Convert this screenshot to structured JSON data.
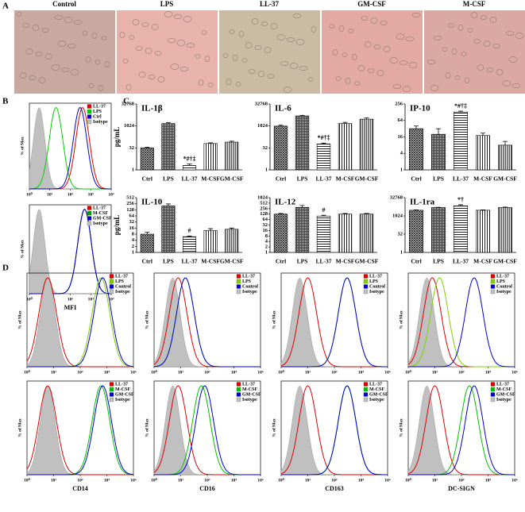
{
  "panel_labels": [
    "A",
    "B",
    "C",
    "D"
  ],
  "micrographs": [
    "Control",
    "LPS",
    "LL-37",
    "GM-CSF",
    "M-CSF"
  ],
  "chart_data": [
    {
      "type": "bar",
      "title": "IL-1β",
      "ylabel": "pg/mL",
      "categories": [
        "Ctrl",
        "LPS",
        "LL-37",
        "M-CSF",
        "GM-CSF"
      ],
      "values": [
        32,
        1500,
        2,
        64,
        80
      ],
      "errors": [
        4,
        200,
        0.5,
        8,
        12
      ],
      "annotations": [
        null,
        null,
        "*#†‡",
        null,
        null
      ],
      "ylim": [
        1,
        32768
      ],
      "yticks": [
        1,
        32,
        1024,
        32768
      ],
      "log_base": 2
    },
    {
      "type": "bar",
      "title": "IL-6",
      "categories": [
        "Ctrl",
        "LPS",
        "LL-37",
        "M-CSF",
        "GM-CSF"
      ],
      "values": [
        1000,
        5000,
        60,
        1500,
        3000
      ],
      "errors": [
        150,
        500,
        8,
        300,
        600
      ],
      "annotations": [
        null,
        null,
        "*#†‡",
        null,
        null
      ],
      "ylim": [
        1,
        32768
      ],
      "yticks": [
        1,
        32,
        1024,
        32768
      ],
      "log_base": 2
    },
    {
      "type": "bar",
      "title": "IP-10",
      "categories": [
        "Ctrl",
        "LPS",
        "LL-37",
        "M-CSF",
        "GM-CSF"
      ],
      "values": [
        32,
        20,
        130,
        18,
        8
      ],
      "errors": [
        8,
        12,
        10,
        4,
        3
      ],
      "annotations": [
        null,
        null,
        "*#†‡",
        null,
        null
      ],
      "ylim": [
        1,
        256
      ],
      "yticks": [
        1,
        4,
        16,
        64,
        256
      ],
      "log_base": 2
    },
    {
      "type": "bar",
      "title": "IL-10",
      "ylabel": "pg/mL",
      "categories": [
        "Ctrl",
        "LPS",
        "LL-37",
        "M-CSF",
        "GM-CSF"
      ],
      "values": [
        8,
        200,
        6,
        12,
        14
      ],
      "errors": [
        2,
        50,
        0.5,
        3,
        2
      ],
      "annotations": [
        null,
        null,
        "#",
        null,
        null
      ],
      "ylim": [
        1,
        512
      ],
      "yticks": [
        1,
        2,
        4,
        8,
        16,
        32,
        64,
        128,
        256,
        512
      ],
      "log_base": 2
    },
    {
      "type": "bar",
      "title": "IL-12",
      "categories": [
        "Ctrl",
        "LPS",
        "LL-37",
        "M-CSF",
        "GM-CSF"
      ],
      "values": [
        128,
        300,
        100,
        128,
        128
      ],
      "errors": [
        10,
        80,
        10,
        10,
        10
      ],
      "annotations": [
        null,
        null,
        "#",
        null,
        null
      ],
      "ylim": [
        1,
        1024
      ],
      "yticks": [
        1,
        2,
        4,
        8,
        16,
        32,
        64,
        128,
        256,
        512,
        1024
      ],
      "log_base": 2
    },
    {
      "type": "bar",
      "title": "IL-1ra",
      "categories": [
        "Ctrl",
        "LPS",
        "LL-37",
        "M-CSF",
        "GM-CSF"
      ],
      "values": [
        3000,
        5000,
        7000,
        3000,
        5000
      ],
      "errors": [
        200,
        300,
        1500,
        200,
        500
      ],
      "annotations": [
        null,
        null,
        "*†",
        null,
        null
      ],
      "ylim": [
        1,
        32768
      ],
      "yticks": [
        1,
        32,
        1024,
        32768
      ],
      "log_base": 2
    },
    {
      "type": "density",
      "ylabel": "% of Max",
      "series": [
        {
          "name": "LL-37",
          "color": "#e00000",
          "peak": 400
        },
        {
          "name": "LPS",
          "color": "#00d000",
          "peak": 20
        },
        {
          "name": "Ctrl",
          "color": "#0000d0",
          "peak": 300
        },
        {
          "name": "Isotype",
          "color": "#c0c0c0",
          "peak": 3
        }
      ],
      "xlim": [
        1,
        10000
      ],
      "xticks": [
        {
          "value": 1,
          "label": "10⁰"
        },
        {
          "value": 10,
          "label": "10¹"
        },
        {
          "value": 100,
          "label": "10²"
        },
        {
          "value": 1000,
          "label": "10³"
        },
        {
          "value": 10000,
          "label": "10⁴"
        }
      ],
      "ylim": [
        0,
        100
      ],
      "log_x": true
    },
    {
      "type": "density",
      "ylabel": "% of Max",
      "xlabel": "MFI",
      "series": [
        {
          "name": "LL-37",
          "color": "#e00000",
          "peak": 500
        },
        {
          "name": "M-CSF",
          "color": "#00a000",
          "peak": 500
        },
        {
          "name": "GM-CSF",
          "color": "#0000d0",
          "peak": 500
        },
        {
          "name": "Isotype",
          "color": "#c0c0c0",
          "peak": 3
        }
      ],
      "xlim": [
        1,
        10000
      ],
      "xticks": [
        {
          "value": 1,
          "label": "10⁰"
        },
        {
          "value": 10,
          "label": "10¹"
        },
        {
          "value": 100,
          "label": "10²"
        },
        {
          "value": 1000,
          "label": "10³"
        },
        {
          "value": 10000,
          "label": "10⁴"
        }
      ],
      "ylim": [
        0,
        100
      ],
      "log_x": true
    },
    {
      "type": "density",
      "ylabel": "% of Max",
      "series": [
        {
          "name": "LL-37",
          "color": "#e00000",
          "peak": 6
        },
        {
          "name": "LPS",
          "color": "#80d000",
          "peak": 600
        },
        {
          "name": "Control",
          "color": "#0000d0",
          "peak": 700
        },
        {
          "name": "Isotype",
          "color": "#c0c0c0",
          "peak": 6
        }
      ],
      "xlim": [
        1,
        10000
      ],
      "xticks": [
        {
          "value": 1,
          "label": "10⁰"
        },
        {
          "value": 10,
          "label": "10¹"
        },
        {
          "value": 100,
          "label": "10²"
        },
        {
          "value": 1000,
          "label": "10³"
        },
        {
          "value": 10000,
          "label": "10⁴"
        }
      ],
      "ylim": [
        0,
        100
      ],
      "log_x": true
    },
    {
      "type": "density",
      "ylabel": "% of Max",
      "series": [
        {
          "name": "LL-37",
          "color": "#e00000",
          "peak": 8
        },
        {
          "name": "LPS",
          "color": "#80d000",
          "peak": 15
        },
        {
          "name": "Control",
          "color": "#0000d0",
          "peak": 15
        },
        {
          "name": "Isotype",
          "color": "#c0c0c0",
          "peak": 5
        }
      ],
      "xlim": [
        1,
        10000
      ],
      "xticks": [
        {
          "value": 1,
          "label": "10⁰"
        },
        {
          "value": 10,
          "label": "10¹"
        },
        {
          "value": 100,
          "label": "10²"
        },
        {
          "value": 1000,
          "label": "10³"
        },
        {
          "value": 10000,
          "label": "10⁴"
        }
      ],
      "ylim": [
        0,
        100
      ],
      "log_x": true
    },
    {
      "type": "density",
      "ylabel": "% of Max",
      "series": [
        {
          "name": "LL-37",
          "color": "#e00000",
          "peak": 10
        },
        {
          "name": "LPS",
          "color": "#80d000",
          "peak": 300
        },
        {
          "name": "Control",
          "color": "#0000d0",
          "peak": 300
        },
        {
          "name": "Isotype",
          "color": "#c0c0c0",
          "peak": 5
        }
      ],
      "xlim": [
        1,
        10000
      ],
      "xticks": [
        {
          "value": 1,
          "label": "10⁰"
        },
        {
          "value": 10,
          "label": "10¹"
        },
        {
          "value": 100,
          "label": "10²"
        },
        {
          "value": 1000,
          "label": "10³"
        },
        {
          "value": 10000,
          "label": "10⁴"
        }
      ],
      "ylim": [
        0,
        100
      ],
      "log_x": true
    },
    {
      "type": "density",
      "ylabel": "% of Max",
      "series": [
        {
          "name": "LL-37",
          "color": "#e00000",
          "peak": 8
        },
        {
          "name": "LPS",
          "color": "#80d000",
          "peak": 15
        },
        {
          "name": "Control",
          "color": "#0000d0",
          "peak": 300
        },
        {
          "name": "Isotype",
          "color": "#c0c0c0",
          "peak": 5
        }
      ],
      "xlim": [
        1,
        10000
      ],
      "xticks": [
        {
          "value": 1,
          "label": "10⁰"
        },
        {
          "value": 10,
          "label": "10¹"
        },
        {
          "value": 100,
          "label": "10²"
        },
        {
          "value": 1000,
          "label": "10³"
        },
        {
          "value": 10000,
          "label": "10⁴"
        }
      ],
      "ylim": [
        0,
        100
      ],
      "log_x": true
    },
    {
      "type": "density",
      "ylabel": "% of Max",
      "xlabel": "CD14",
      "series": [
        {
          "name": "LL-37",
          "color": "#e00000",
          "peak": 6
        },
        {
          "name": "M-CSF",
          "color": "#00c000",
          "peak": 600
        },
        {
          "name": "GM-CSF",
          "color": "#0000d0",
          "peak": 700
        },
        {
          "name": "Isotype",
          "color": "#c0c0c0",
          "peak": 6
        }
      ],
      "xlim": [
        1,
        10000
      ],
      "xticks": [
        {
          "value": 1,
          "label": "10⁰"
        },
        {
          "value": 10,
          "label": "10¹"
        },
        {
          "value": 100,
          "label": "10²"
        },
        {
          "value": 1000,
          "label": "10³"
        },
        {
          "value": 10000,
          "label": "10⁴"
        }
      ],
      "ylim": [
        0,
        100
      ],
      "log_x": true
    },
    {
      "type": "density",
      "ylabel": "% of Max",
      "xlabel": "CD16",
      "series": [
        {
          "name": "LL-37",
          "color": "#e00000",
          "peak": 8
        },
        {
          "name": "M-CSF",
          "color": "#00c000",
          "peak": 60
        },
        {
          "name": "GM-CSF",
          "color": "#0000d0",
          "peak": 80
        },
        {
          "name": "Isotype",
          "color": "#c0c0c0",
          "peak": 5
        }
      ],
      "xlim": [
        1,
        10000
      ],
      "xticks": [
        {
          "value": 1,
          "label": "10⁰"
        },
        {
          "value": 10,
          "label": "10¹"
        },
        {
          "value": 100,
          "label": "10²"
        },
        {
          "value": 1000,
          "label": "10³"
        },
        {
          "value": 10000,
          "label": "10⁴"
        }
      ],
      "ylim": [
        0,
        100
      ],
      "log_x": true
    },
    {
      "type": "density",
      "ylabel": "% of Max",
      "xlabel": "CD163",
      "series": [
        {
          "name": "LL-37",
          "color": "#e00000",
          "peak": 10
        },
        {
          "name": "M-CSF",
          "color": "#00c000",
          "peak": 300
        },
        {
          "name": "GM-CSF",
          "color": "#0000d0",
          "peak": 300
        },
        {
          "name": "Isotype",
          "color": "#c0c0c0",
          "peak": 5
        }
      ],
      "xlim": [
        1,
        10000
      ],
      "xticks": [
        {
          "value": 1,
          "label": "10⁰"
        },
        {
          "value": 10,
          "label": "10¹"
        },
        {
          "value": 100,
          "label": "10²"
        },
        {
          "value": 1000,
          "label": "10³"
        },
        {
          "value": 10000,
          "label": "10⁴"
        }
      ],
      "ylim": [
        0,
        100
      ],
      "log_x": true
    },
    {
      "type": "density",
      "ylabel": "% of Max",
      "xlabel": "DC-SIGN",
      "series": [
        {
          "name": "LL-37",
          "color": "#e00000",
          "peak": 10
        },
        {
          "name": "M-CSF",
          "color": "#00c000",
          "peak": 200
        },
        {
          "name": "GM-CSF",
          "color": "#0000d0",
          "peak": 300
        },
        {
          "name": "Isotype",
          "color": "#c0c0c0",
          "peak": 5
        }
      ],
      "xlim": [
        1,
        10000
      ],
      "xticks": [
        {
          "value": 1,
          "label": "10⁰"
        },
        {
          "value": 10,
          "label": "10¹"
        },
        {
          "value": 100,
          "label": "10²"
        },
        {
          "value": 1000,
          "label": "10³"
        },
        {
          "value": 10000,
          "label": "10⁴"
        }
      ],
      "ylim": [
        0,
        100
      ],
      "log_x": true
    }
  ]
}
